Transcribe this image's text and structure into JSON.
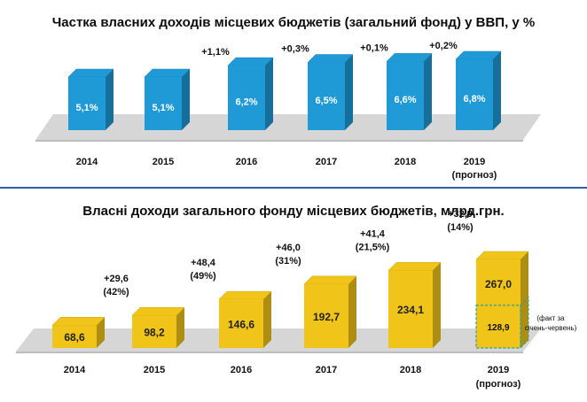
{
  "chart_data": [
    {
      "type": "bar",
      "title": "Частка власних доходів місцевих бюджетів (загальний фонд) у ВВП, у %",
      "categories": [
        "2014",
        "2015",
        "2016",
        "2017",
        "2018",
        "2019"
      ],
      "category_notes": [
        "",
        "",
        "",
        "",
        "",
        "(прогноз)"
      ],
      "values": [
        5.1,
        5.1,
        6.2,
        6.5,
        6.6,
        6.8
      ],
      "value_labels": [
        "5,1%",
        "5,1%",
        "6,2%",
        "6,5%",
        "6,6%",
        "6,8%"
      ],
      "change_labels": [
        "",
        "",
        "+1,1%",
        "+0,3%",
        "+0,1%",
        "+0,2%"
      ],
      "bar_color": "#1f9ad6"
    },
    {
      "type": "bar",
      "title": "Власні доходи загального фонду місцевих бюджетів, млрд.грн.",
      "categories": [
        "2014",
        "2015",
        "2016",
        "2017",
        "2018",
        "2019"
      ],
      "category_notes": [
        "",
        "",
        "",
        "",
        "",
        "(прогноз)"
      ],
      "values": [
        68.6,
        98.2,
        146.6,
        192.7,
        234.1,
        267.0
      ],
      "value_labels": [
        "68,6",
        "98,2",
        "146,6",
        "192,7",
        "234,1",
        "267,0"
      ],
      "change_labels": [
        "",
        "+29,6\n(42%)",
        "+48,4\n(49%)",
        "+46,0\n(31%)",
        "+41,4\n(21,5%)",
        "+32,9\n(14%)"
      ],
      "bar_color": "#f0c419",
      "inset": {
        "value": 128.9,
        "label": "128,9",
        "note": "(факт за\nсічень-червень)"
      }
    }
  ]
}
